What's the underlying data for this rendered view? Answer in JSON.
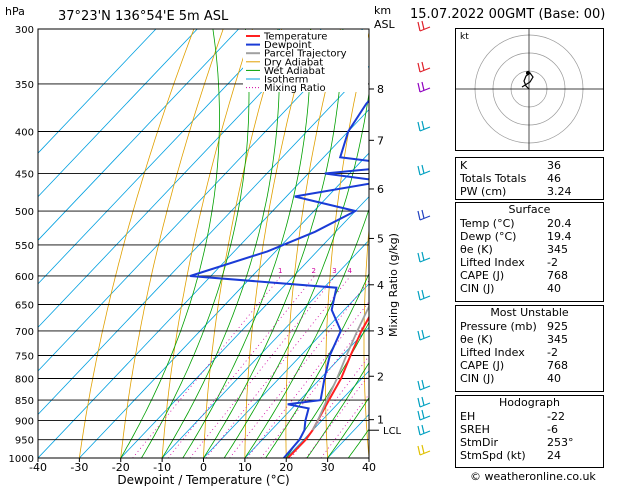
{
  "header": {
    "pressure_unit": "hPa",
    "location": "37°23'N  136°54'E  5m  ASL",
    "altitude_unit_km": "km",
    "altitude_unit_asl": "ASL",
    "datetime": "15.07.2022  00GMT  (Base: 00)"
  },
  "chart_data": {
    "type": "line",
    "title": "37°23'N  136°54'E  5m  ASL",
    "xlabel": "Dewpoint / Temperature (°C)",
    "ylabel": "hPa",
    "xlim": [
      -40,
      40
    ],
    "x_ticks": [
      "-40",
      "-30",
      "-20",
      "-10",
      "0",
      "10",
      "20",
      "30",
      "40"
    ],
    "pressure_levels": [
      "300",
      "350",
      "400",
      "450",
      "500",
      "550",
      "600",
      "650",
      "700",
      "750",
      "800",
      "850",
      "900",
      "950",
      "1000"
    ],
    "km_ticks": [
      "1",
      "2",
      "3",
      "4",
      "5",
      "6",
      "7",
      "8"
    ],
    "km_pressure": [
      898,
      795,
      700,
      615,
      540,
      470,
      410,
      355
    ],
    "lcl_label": "LCL",
    "lcl_pressure": 925,
    "mixing_ratio_label": "Mixing Ratio (g/kg)",
    "mixing_ratios": [
      "1",
      "2",
      "3",
      "4",
      "6",
      "8",
      "10",
      "16",
      "20",
      "25"
    ],
    "legend": [
      "Temperature",
      "Dewpoint",
      "Parcel Trajectory",
      "Dry Adiabat",
      "Wet Adiabat",
      "Isotherm",
      "Mixing Ratio"
    ],
    "colors": {
      "temperature": "#ff2020",
      "dewpoint": "#1a3bd6",
      "parcel": "#a0a0a0",
      "dry_adiabat": "#e0a000",
      "wet_adiabat": "#00a000",
      "isotherm": "#00a0e0",
      "mixing_ratio": "#d000a0"
    },
    "series": [
      {
        "name": "Temperature",
        "pressure": [
          1000,
          950,
          925,
          900,
          850,
          800,
          750,
          700,
          650,
          600,
          550,
          500,
          450,
          400,
          350,
          300
        ],
        "values": [
          20.4,
          20.5,
          20.0,
          19.0,
          17.0,
          15.0,
          12.0,
          9.0,
          6.5,
          4.0,
          0.0,
          -4.5,
          -10.0,
          -16.0,
          -24.0,
          -32.0
        ]
      },
      {
        "name": "Dewpoint",
        "pressure": [
          1000,
          950,
          925,
          900,
          870,
          860,
          850,
          800,
          750,
          700,
          660,
          620,
          600,
          560,
          530,
          500,
          480,
          460,
          450,
          440,
          430,
          400,
          370,
          350,
          320,
          300
        ],
        "values": [
          19.4,
          19.0,
          18.0,
          16.0,
          14.0,
          8.0,
          15.0,
          11.0,
          7.0,
          4.0,
          -3.0,
          -7.0,
          -45.0,
          -32.0,
          -25.0,
          -20.0,
          -38.0,
          -20.0,
          -36.0,
          -18.0,
          -36.0,
          -40.0,
          -42.0,
          -42.0,
          -36.0,
          -38.0
        ]
      },
      {
        "name": "Parcel Trajectory",
        "pressure": [
          925,
          900,
          850,
          800,
          750,
          700,
          650,
          600,
          550,
          500,
          450,
          400,
          360
        ],
        "values": [
          20.0,
          19.0,
          16.5,
          14.0,
          11.0,
          8.0,
          5.0,
          1.5,
          -2.0,
          -6.5,
          -12.0,
          -18.0,
          -24.0
        ]
      }
    ]
  },
  "indices": {
    "rows": [
      {
        "label": "K",
        "value": "36"
      },
      {
        "label": "Totals Totals",
        "value": "46"
      },
      {
        "label": "PW (cm)",
        "value": "3.24"
      }
    ]
  },
  "surface": {
    "title": "Surface",
    "rows": [
      {
        "label": "Temp (°C)",
        "value": "20.4"
      },
      {
        "label": "Dewp (°C)",
        "value": "19.4"
      },
      {
        "label": "θe (K)",
        "value": "345"
      },
      {
        "label": "Lifted Index",
        "value": "-2"
      },
      {
        "label": "CAPE (J)",
        "value": "768"
      },
      {
        "label": "CIN (J)",
        "value": "40"
      }
    ]
  },
  "most_unstable": {
    "title": "Most Unstable",
    "rows": [
      {
        "label": "Pressure (mb)",
        "value": "925"
      },
      {
        "label": "θe (K)",
        "value": "345"
      },
      {
        "label": "Lifted Index",
        "value": "-2"
      },
      {
        "label": "CAPE (J)",
        "value": "768"
      },
      {
        "label": "CIN (J)",
        "value": "40"
      }
    ]
  },
  "hodograph": {
    "title": "Hodograph",
    "label": "kt",
    "rows": [
      {
        "label": "EH",
        "value": "-22"
      },
      {
        "label": "SREH",
        "value": "-6"
      },
      {
        "label": "StmDir",
        "value": "253°"
      },
      {
        "label": "StmSpd (kt)",
        "value": "24"
      }
    ]
  },
  "footer": "© weatheronline.co.uk"
}
